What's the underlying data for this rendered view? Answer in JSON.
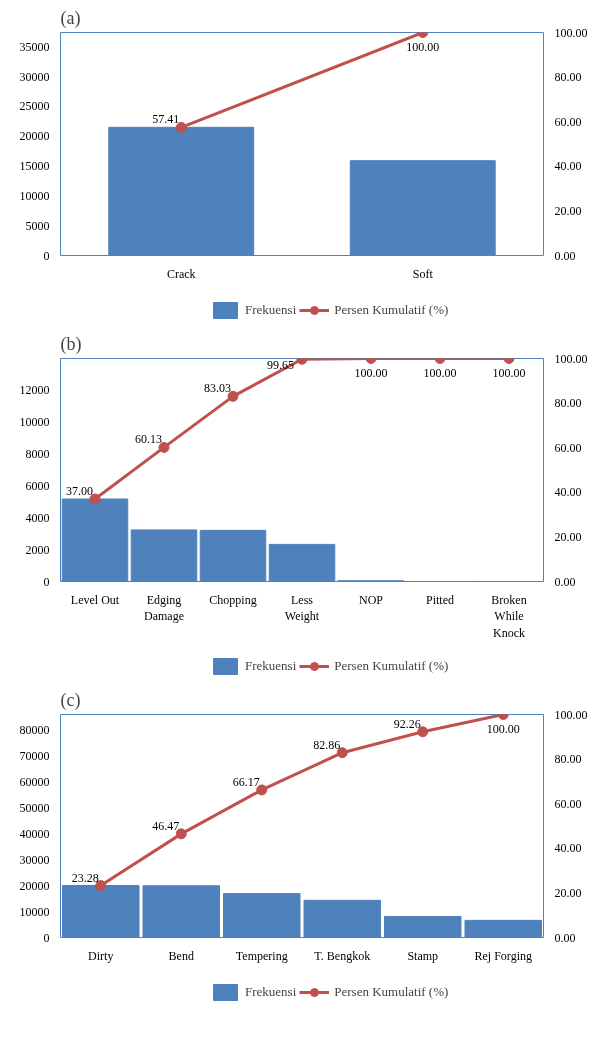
{
  "chart_data": [
    {
      "type": "bar",
      "title": "(a)",
      "categories": [
        "Crack",
        "Soft"
      ],
      "ylim": [
        0,
        37400
      ],
      "yticks": [
        0,
        5000,
        10000,
        15000,
        20000,
        25000,
        30000,
        35000
      ],
      "y2lim": [
        0,
        100
      ],
      "y2ticks": [
        {
          "value": 0,
          "label": "0.00"
        },
        {
          "value": 20,
          "label": "20.00"
        },
        {
          "value": 40,
          "label": "40.00"
        },
        {
          "value": 60,
          "label": "60.00"
        },
        {
          "value": 80,
          "label": "80.00"
        },
        {
          "value": 100,
          "label": "100.00"
        }
      ],
      "grid": false,
      "legend": "bottom",
      "marker": "circle",
      "series": [
        {
          "name": "Frekuensi",
          "type": "bar",
          "color": "#4f81bd",
          "values": [
            21500,
            15900
          ]
        },
        {
          "name": "Persen Kumulatif (%)",
          "type": "line",
          "axis": "y2",
          "color": "#c0504d",
          "values": [
            57.41,
            100.0
          ],
          "value_labels": [
            "57.41",
            "100.00"
          ]
        }
      ]
    },
    {
      "type": "bar",
      "title": "(b)",
      "categories": [
        "Level Out",
        "Edging Damage",
        "Chopping",
        "Less Weight",
        "NOP",
        "Pitted",
        "Broken While Knock"
      ],
      "ylim": [
        0,
        14000
      ],
      "yticks": [
        0,
        2000,
        4000,
        6000,
        8000,
        10000,
        12000
      ],
      "y2lim": [
        0,
        100
      ],
      "y2ticks": [
        {
          "value": 0,
          "label": "0.00"
        },
        {
          "value": 20,
          "label": "20.00"
        },
        {
          "value": 40,
          "label": "40.00"
        },
        {
          "value": 60,
          "label": "60.00"
        },
        {
          "value": 80,
          "label": "80.00"
        },
        {
          "value": 100,
          "label": "100.00"
        }
      ],
      "grid": false,
      "legend": "bottom",
      "marker": "circle",
      "series": [
        {
          "name": "Frekuensi",
          "type": "bar",
          "color": "#4f81bd",
          "values": [
            5180,
            3240,
            3210,
            2330,
            50,
            0,
            0
          ]
        },
        {
          "name": "Persen Kumulatif (%)",
          "type": "line",
          "axis": "y2",
          "color": "#c0504d",
          "values": [
            37.0,
            60.13,
            83.03,
            99.65,
            100.0,
            100.0,
            100.0
          ],
          "value_labels": [
            "37.00",
            "60.13",
            "83.03",
            "99.65",
            "100.00",
            "100.00",
            "100.00"
          ]
        }
      ]
    },
    {
      "type": "bar",
      "title": "(c)",
      "categories": [
        "Dirty",
        "Bend",
        "Tempering",
        "T. Bengkok",
        "Stamp",
        "Rej Forging"
      ],
      "ylim": [
        0,
        85800
      ],
      "yticks": [
        0,
        10000,
        20000,
        30000,
        40000,
        50000,
        60000,
        70000,
        80000
      ],
      "y2lim": [
        0,
        100
      ],
      "y2ticks": [
        {
          "value": 0,
          "label": "0.00"
        },
        {
          "value": 20,
          "label": "20.00"
        },
        {
          "value": 40,
          "label": "40.00"
        },
        {
          "value": 60,
          "label": "60.00"
        },
        {
          "value": 80,
          "label": "80.00"
        },
        {
          "value": 100,
          "label": "100.00"
        }
      ],
      "grid": false,
      "legend": "bottom",
      "marker": "circle",
      "series": [
        {
          "name": "Frekuensi",
          "type": "bar",
          "color": "#4f81bd",
          "values": [
            20000,
            19900,
            16900,
            14300,
            8100,
            6600
          ]
        },
        {
          "name": "Persen Kumulatif (%)",
          "type": "line",
          "axis": "y2",
          "color": "#c0504d",
          "values": [
            23.28,
            46.47,
            66.17,
            82.86,
            92.26,
            100.0
          ],
          "value_labels": [
            "23.28",
            "46.47",
            "66.17",
            "82.86",
            "92.26",
            "100.00"
          ]
        }
      ]
    }
  ]
}
